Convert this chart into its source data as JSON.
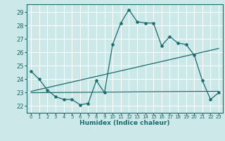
{
  "xlabel": "Humidex (Indice chaleur)",
  "bg_color": "#cce8e8",
  "grid_color": "#ffffff",
  "line_color": "#1a6b6b",
  "xlim": [
    -0.5,
    23.5
  ],
  "ylim": [
    21.5,
    29.6
  ],
  "xticks": [
    0,
    1,
    2,
    3,
    4,
    5,
    6,
    7,
    8,
    9,
    10,
    11,
    12,
    13,
    14,
    15,
    16,
    17,
    18,
    19,
    20,
    21,
    22,
    23
  ],
  "yticks": [
    22,
    23,
    24,
    25,
    26,
    27,
    28,
    29
  ],
  "zigzag_x": [
    0,
    1,
    2,
    3,
    4,
    5,
    6,
    7,
    8,
    9,
    10,
    11,
    12,
    13,
    14,
    15,
    16,
    17,
    18,
    19,
    20,
    21,
    22,
    23
  ],
  "zigzag_y": [
    24.6,
    24.0,
    23.2,
    22.7,
    22.5,
    22.5,
    22.1,
    22.2,
    23.9,
    23.0,
    26.6,
    28.2,
    29.2,
    28.3,
    28.2,
    28.2,
    26.5,
    27.2,
    26.7,
    26.6,
    25.8,
    23.9,
    22.5,
    23.0
  ],
  "line1_x": [
    0,
    23
  ],
  "line1_y": [
    23.1,
    26.3
  ],
  "line2_x": [
    0,
    23
  ],
  "line2_y": [
    23.0,
    23.1
  ]
}
